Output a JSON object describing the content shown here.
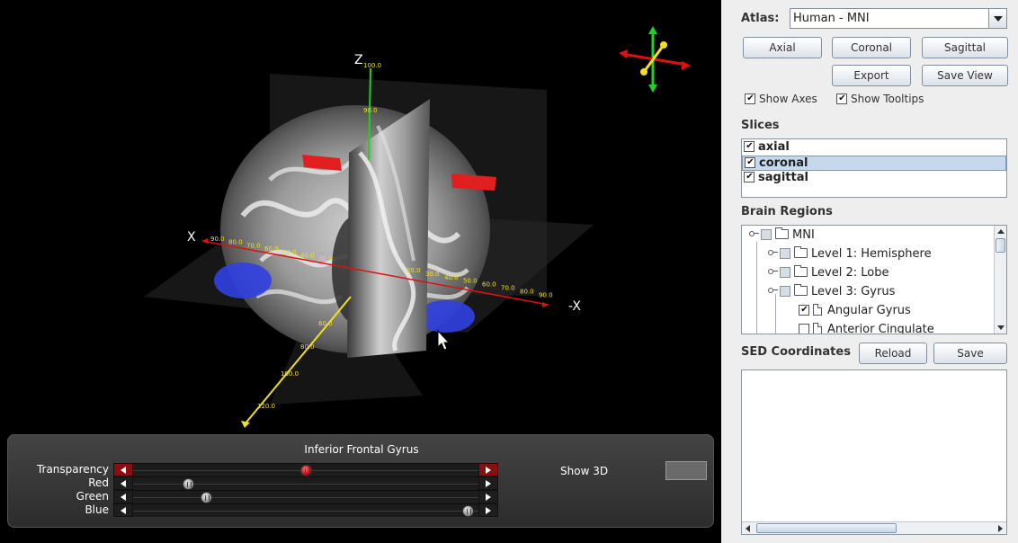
{
  "viewport": {
    "axis_labels": {
      "z": "Z",
      "x": "X",
      "neg_x": "-X"
    },
    "x_ticks_left": [
      "90.0",
      "80.0",
      "70.0",
      "60.0",
      "50.0",
      "40.0",
      "30.0"
    ],
    "x_ticks_right": [
      "20.0",
      "30.0",
      "40.0",
      "50.0",
      "60.0",
      "70.0",
      "80.0",
      "90.0"
    ],
    "z_ticks": [
      "100.0",
      "90.0"
    ],
    "y_ticks": [
      "60.0",
      "80.0",
      "100.0",
      "120.0"
    ],
    "colors": {
      "x_axis": "#e01010",
      "y_axis": "#f0e020",
      "z_axis": "#20d020",
      "region_red": "#e02020",
      "region_blue": "#3040e0"
    }
  },
  "controls": {
    "region_name": "Inferior Frontal Gyrus",
    "sliders": [
      {
        "label": "Transparency",
        "value": 0.5,
        "accent": true
      },
      {
        "label": "Red",
        "value": 0.16,
        "accent": false
      },
      {
        "label": "Green",
        "value": 0.21,
        "accent": false
      },
      {
        "label": "Blue",
        "value": 0.97,
        "accent": false
      }
    ],
    "show3d_label": "Show 3D"
  },
  "panel": {
    "atlas_label": "Atlas:",
    "atlas_value": "Human - MNI",
    "buttons": {
      "axial": "Axial",
      "coronal": "Coronal",
      "sagittal": "Sagittal",
      "export": "Export",
      "save_view": "Save View"
    },
    "show_axes": {
      "label": "Show Axes",
      "checked": true
    },
    "show_tooltips": {
      "label": "Show Tooltips",
      "checked": true
    },
    "slices_label": "Slices",
    "slices": [
      {
        "label": "axial",
        "checked": true,
        "selected": false
      },
      {
        "label": "coronal",
        "checked": true,
        "selected": true
      },
      {
        "label": "sagittal",
        "checked": true,
        "selected": false
      }
    ],
    "regions_label": "Brain Regions",
    "tree": [
      {
        "label": "MNI",
        "type": "folder",
        "checked": false
      },
      {
        "label": "Level 1: Hemisphere",
        "type": "folder",
        "checked": false
      },
      {
        "label": "Level 2: Lobe",
        "type": "folder",
        "checked": false
      },
      {
        "label": "Level 3: Gyrus",
        "type": "folder",
        "checked": false
      },
      {
        "label": "Angular Gyrus",
        "type": "leaf",
        "checked": true
      },
      {
        "label": "Anterior Cingulate",
        "type": "leaf",
        "checked": false
      }
    ],
    "sed_label": "SED Coordinates",
    "reload_label": "Reload",
    "save_label": "Save"
  }
}
